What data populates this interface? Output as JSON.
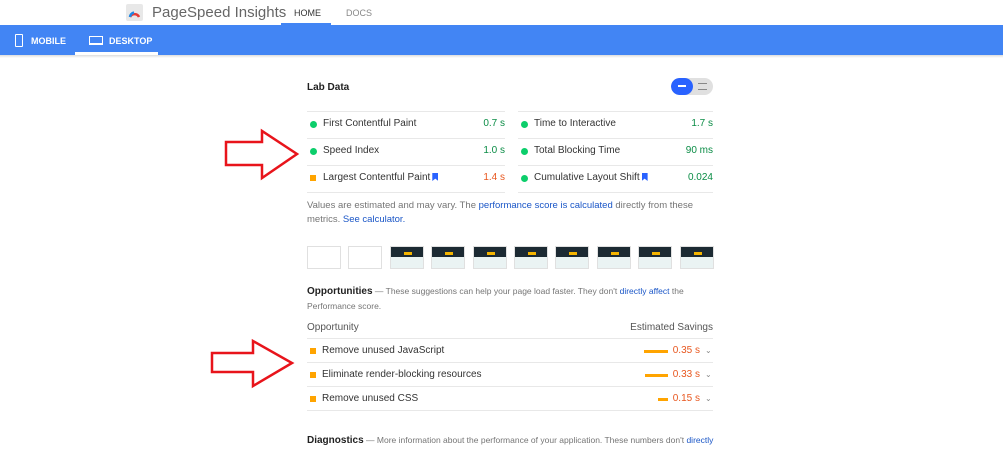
{
  "header": {
    "brand": "PageSpeed Insights",
    "nav": [
      "HOME",
      "DOCS"
    ],
    "active_nav": "HOME"
  },
  "device_tabs": {
    "mobile": "MOBILE",
    "desktop": "DESKTOP",
    "active": "DESKTOP"
  },
  "lab": {
    "title": "Lab Data",
    "metrics": [
      {
        "label": "First Contentful Paint",
        "value": "0.7 s",
        "status": "good"
      },
      {
        "label": "Speed Index",
        "value": "1.0 s",
        "status": "good"
      },
      {
        "label": "Largest Contentful Paint",
        "value": "1.4 s",
        "status": "average"
      },
      {
        "label": "Time to Interactive",
        "value": "1.7 s",
        "status": "good"
      },
      {
        "label": "Total Blocking Time",
        "value": "90 ms",
        "status": "good"
      },
      {
        "label": "Cumulative Layout Shift",
        "value": "0.024",
        "status": "good"
      }
    ],
    "note_pre": "Values are estimated and may vary. The ",
    "note_link1": "performance score is calculated",
    "note_mid": " directly from these metrics. ",
    "note_link2": "See calculator."
  },
  "opportunities": {
    "title": "Opportunities",
    "desc_pre": " — These suggestions can help your page load faster. They don't ",
    "desc_link": "directly affect",
    "desc_post": " the Performance score.",
    "col_left": "Opportunity",
    "col_right": "Estimated Savings",
    "items": [
      {
        "label": "Remove unused JavaScript",
        "value": "0.35 s",
        "fraction": 1.0
      },
      {
        "label": "Eliminate render-blocking resources",
        "value": "0.33 s",
        "fraction": 0.94
      },
      {
        "label": "Remove unused CSS",
        "value": "0.15 s",
        "fraction": 0.43
      }
    ]
  },
  "diagnostics": {
    "title": "Diagnostics",
    "desc_pre": " — More information about the performance of your application. These numbers don't ",
    "desc_link": "directly"
  },
  "colors": {
    "blue": "#4285f4",
    "good": "#0cce6b",
    "average": "#ffa400",
    "arrow": "#e8141b"
  }
}
